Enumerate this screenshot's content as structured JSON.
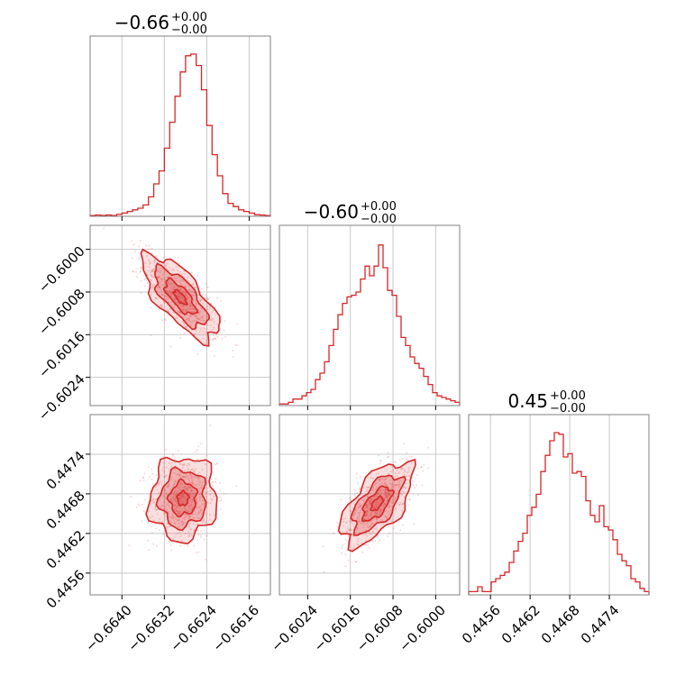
{
  "titles": [
    {
      "value": "−0.66",
      "plus": "+0.00",
      "minus": "−0.00"
    },
    {
      "value": "−0.60",
      "plus": "+0.00",
      "minus": "−0.00"
    },
    {
      "value": "0.45",
      "plus": "+0.00",
      "minus": "−0.00"
    }
  ],
  "colors": {
    "accent": "#d62728",
    "frame": "#808080",
    "grid": "#c8c8c8"
  },
  "chart_data": {
    "type": "corner",
    "grid": true,
    "parameters": [
      {
        "range": [
          -0.6646,
          -0.6612
        ],
        "ticks": [
          -0.664,
          -0.6632,
          -0.6624,
          -0.6616
        ],
        "tick_labels": [
          "−0.6640",
          "−0.6632",
          "−0.6624",
          "−0.6616"
        ]
      },
      {
        "range": [
          -0.60293,
          -0.59955
        ],
        "ticks": [
          -0.6024,
          -0.6016,
          -0.6008,
          -0.6
        ],
        "tick_labels": [
          "−0.6024",
          "−0.6016",
          "−0.6008",
          "−0.6000"
        ]
      },
      {
        "range": [
          0.44527,
          0.448
        ],
        "ticks": [
          0.4456,
          0.4462,
          0.4468,
          0.4474
        ],
        "tick_labels": [
          "0.4456",
          "0.4462",
          "0.4468",
          "0.4474"
        ]
      }
    ],
    "histograms": [
      {
        "values": [
          0.005,
          0.008,
          0.005,
          0.008,
          0.005,
          0.012,
          0.02,
          0.03,
          0.04,
          0.05,
          0.07,
          0.12,
          0.2,
          0.28,
          0.42,
          0.58,
          0.74,
          0.89,
          0.99,
          1.0,
          0.93,
          0.78,
          0.56,
          0.38,
          0.25,
          0.14,
          0.08,
          0.06,
          0.04,
          0.03,
          0.02,
          0.01,
          0.008,
          0.005
        ]
      },
      {
        "values": [
          0.01,
          0.01,
          0.02,
          0.04,
          0.04,
          0.06,
          0.08,
          0.1,
          0.16,
          0.2,
          0.27,
          0.37,
          0.47,
          0.56,
          0.63,
          0.67,
          0.68,
          0.7,
          0.78,
          0.86,
          0.8,
          0.86,
          0.99,
          0.85,
          0.71,
          0.68,
          0.55,
          0.42,
          0.37,
          0.3,
          0.26,
          0.23,
          0.18,
          0.13,
          0.08,
          0.06,
          0.05,
          0.04,
          0.03,
          0.02
        ]
      },
      {
        "values": [
          0.02,
          0.02,
          0.05,
          0.02,
          0.02,
          0.08,
          0.1,
          0.12,
          0.14,
          0.2,
          0.27,
          0.33,
          0.38,
          0.49,
          0.54,
          0.62,
          0.76,
          0.86,
          0.95,
          1.0,
          0.99,
          0.85,
          0.87,
          0.75,
          0.76,
          0.73,
          0.58,
          0.49,
          0.45,
          0.55,
          0.42,
          0.4,
          0.34,
          0.25,
          0.21,
          0.18,
          0.1,
          0.08,
          0.04,
          0.02
        ]
      }
    ],
    "pairs": [
      {
        "xi": 0,
        "yi": 1,
        "mean": [
          -0.6629,
          -0.6009
        ],
        "sd": [
          0.00034,
          0.00038
        ],
        "rho": -0.72
      },
      {
        "xi": 0,
        "yi": 2,
        "mean": [
          -0.66285,
          0.44673
        ],
        "sd": [
          0.0003,
          0.0003
        ],
        "rho": 0.05
      },
      {
        "xi": 1,
        "yi": 2,
        "mean": [
          -0.6011,
          0.44665
        ],
        "sd": [
          0.00032,
          0.0003
        ],
        "rho": 0.62
      }
    ]
  }
}
